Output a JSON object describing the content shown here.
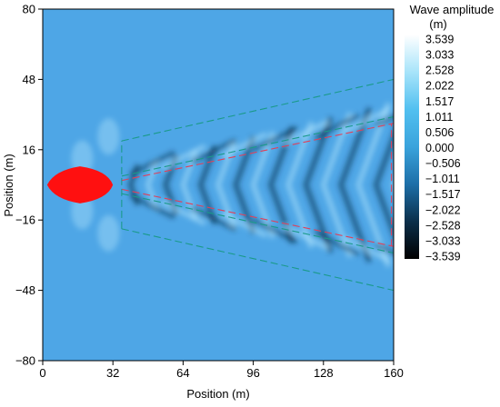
{
  "chart_data": {
    "type": "heatmap",
    "title": "",
    "xlabel": "Position (m)",
    "ylabel": "Position (m)",
    "xlim": [
      0,
      160
    ],
    "ylim": [
      -80,
      80
    ],
    "x_ticks": [
      0,
      32,
      64,
      96,
      128,
      160
    ],
    "y_ticks": [
      80,
      48,
      16,
      -16,
      -48,
      -80
    ],
    "x_tick_labels": [
      "0",
      "32",
      "64",
      "96",
      "128",
      "160"
    ],
    "y_tick_labels": [
      "80",
      "48",
      "16",
      "−16",
      "−48",
      "−80"
    ],
    "colorbar": {
      "title_line1": "Wave amplitude",
      "title_line2": "(m)",
      "min": -3.539,
      "max": 3.539,
      "tick_labels": [
        "3.539",
        "3.033",
        "2.528",
        "2.022",
        "1.517",
        "1.011",
        "0.506",
        "0.000",
        "−0.506",
        "−1.011",
        "−1.517",
        "−2.022",
        "−2.528",
        "−3.033",
        "−3.539"
      ],
      "colors": [
        "#000000",
        "#0b2f4a",
        "#1d6fa8",
        "#3aa3dc",
        "#52c0f0",
        "#a8e4fa",
        "#ffffff"
      ]
    },
    "background_color": "#4ea6e6",
    "vessel": {
      "color": "#ff1010",
      "x_range": [
        2,
        32
      ],
      "y_center": 0,
      "half_width": 6
    },
    "wake_lines": [
      {
        "name": "",
        "color": "#1a9a8a",
        "dash": "8,4",
        "x": [
          36,
          160
        ],
        "y": [
          20,
          48
        ]
      },
      {
        "name": "",
        "color": "#1a9a8a",
        "dash": "8,4",
        "x": [
          36,
          160
        ],
        "y": [
          -20,
          -48
        ]
      },
      {
        "name": "",
        "color": "#1a9a8a",
        "dash": "8,4",
        "x": [
          36,
          160
        ],
        "y": [
          4,
          31
        ]
      },
      {
        "name": "",
        "color": "#1a9a8a",
        "dash": "8,4",
        "x": [
          36,
          160
        ],
        "y": [
          -4,
          -31
        ]
      },
      {
        "name": "",
        "color": "#e0405a",
        "dash": "8,4",
        "x": [
          36,
          160
        ],
        "y": [
          2,
          28
        ]
      },
      {
        "name": "",
        "color": "#e0405a",
        "dash": "8,4",
        "x": [
          36,
          160
        ],
        "y": [
          -2,
          -28
        ]
      },
      {
        "name": "",
        "color": "#1a9a8a",
        "dash": "8,4",
        "x": [
          36,
          36
        ],
        "y": [
          -20,
          20
        ]
      },
      {
        "name": "",
        "color": "#e0405a",
        "dash": "8,4",
        "x": [
          159,
          159
        ],
        "y": [
          -28,
          28
        ]
      }
    ]
  }
}
